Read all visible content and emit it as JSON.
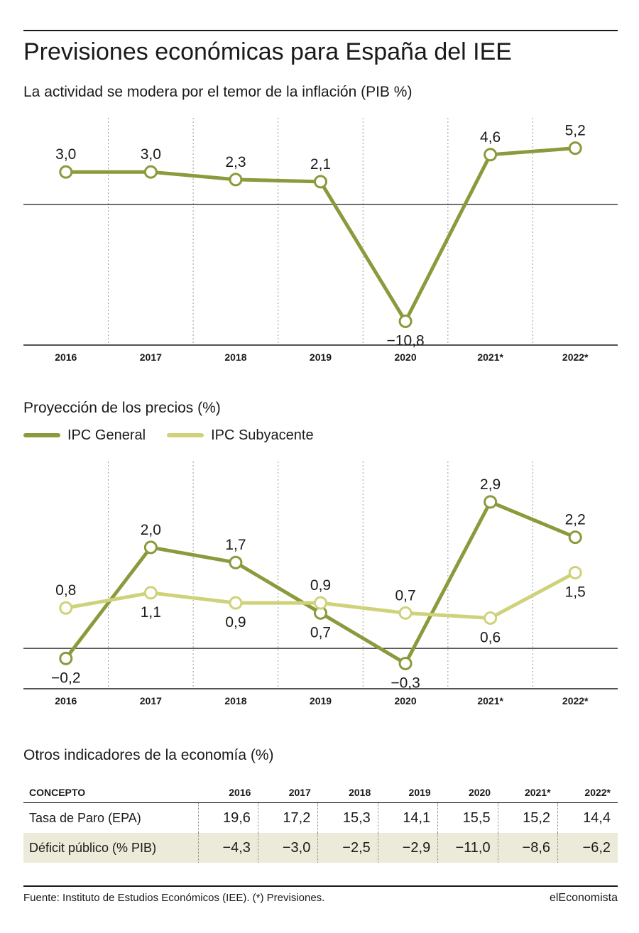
{
  "header": {
    "title": "Previsiones económicas para España del IEE"
  },
  "chart_data": [
    {
      "type": "line",
      "title": "La actividad se modera por el temor de la inflación (PIB %)",
      "categories": [
        "2016",
        "2017",
        "2018",
        "2019",
        "2020",
        "2021*",
        "2022*"
      ],
      "series": [
        {
          "name": "",
          "values": [
            3.0,
            3.0,
            2.3,
            2.1,
            -10.8,
            4.6,
            5.2
          ],
          "labels": [
            "3,0",
            "3,0",
            "2,3",
            "2,1",
            "−10,8",
            "4,6",
            "5,2"
          ],
          "label_positions": [
            "above",
            "above",
            "above",
            "above",
            "below",
            "above",
            "above"
          ]
        }
      ],
      "ylim": [
        -13,
        8
      ],
      "zero_line": true,
      "grid": "vertical dotted",
      "colors": [
        "#8a9a3c"
      ]
    },
    {
      "type": "line",
      "title": "Proyección de los precios (%)",
      "categories": [
        "2016",
        "2017",
        "2018",
        "2019",
        "2020",
        "2021*",
        "2022*"
      ],
      "series": [
        {
          "name": "IPC General",
          "values": [
            -0.2,
            2.0,
            1.7,
            0.7,
            -0.3,
            2.9,
            2.2
          ],
          "labels": [
            "−0,2",
            "2,0",
            "1,7",
            "0,7",
            "−0,3",
            "2,9",
            "2,2"
          ],
          "label_positions": [
            "below",
            "above",
            "above",
            "below",
            "below",
            "above",
            "above"
          ]
        },
        {
          "name": "IPC Subyacente",
          "values": [
            0.8,
            1.1,
            0.9,
            0.9,
            0.7,
            0.6,
            1.5
          ],
          "labels": [
            "0,8",
            "1,1",
            "0,9",
            "0,9",
            "0,7",
            "0,6",
            "1,5"
          ],
          "label_positions": [
            "above",
            "below",
            "below",
            "above",
            "above",
            "below",
            "below"
          ]
        }
      ],
      "ylim": [
        -0.8,
        3.7
      ],
      "zero_line": true,
      "grid": "vertical dotted",
      "legend": "top-left",
      "colors": [
        "#8a9a3c",
        "#cfd27a"
      ]
    }
  ],
  "indicators": {
    "title": "Otros indicadores de la economía (%)",
    "columns": [
      "CONCEPTO",
      "2016",
      "2017",
      "2018",
      "2019",
      "2020",
      "2021*",
      "2022*"
    ],
    "rows": [
      {
        "concept": "Tasa de Paro (EPA)",
        "values": [
          "19,6",
          "17,2",
          "15,3",
          "14,1",
          "15,5",
          "15,2",
          "14,4"
        ]
      },
      {
        "concept": "Déficit público (% PIB)",
        "values": [
          "−4,3",
          "−3,0",
          "−2,5",
          "−2,9",
          "−11,0",
          "−8,6",
          "−6,2"
        ]
      }
    ]
  },
  "footer": {
    "source": "Fuente: Instituto de Estudios Económicos (IEE). (*) Previsiones.",
    "brand": "elEconomista"
  }
}
